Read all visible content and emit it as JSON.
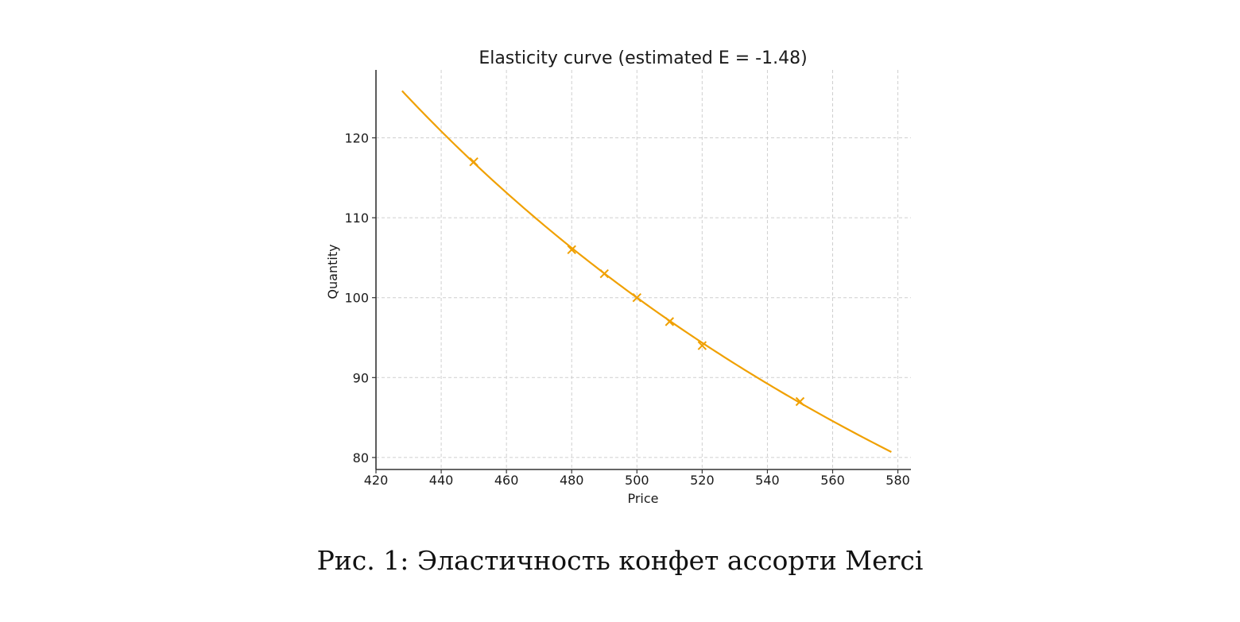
{
  "chart_data": {
    "type": "line",
    "title": "Elasticity curve (estimated E = -1.48)",
    "xlabel": "Price",
    "ylabel": "Quantity",
    "xlim": [
      420,
      584
    ],
    "ylim": [
      78.5,
      128.5
    ],
    "xticks": [
      420,
      440,
      460,
      480,
      500,
      520,
      540,
      560,
      580
    ],
    "yticks": [
      80,
      90,
      100,
      110,
      120
    ],
    "grid": true,
    "color": "#f0a000",
    "curve": {
      "type": "line",
      "model": "power",
      "reference_price": 500,
      "reference_quantity": 100,
      "elasticity": -1.48,
      "x_range": [
        428,
        578
      ]
    },
    "points": {
      "type": "scatter",
      "marker": "x",
      "x": [
        450,
        480,
        490,
        500,
        510,
        520,
        550
      ],
      "y": [
        117,
        106,
        103,
        100,
        97,
        94,
        87
      ]
    }
  },
  "caption": "Рис. 1: Эластичность конфет ассорти Merci"
}
